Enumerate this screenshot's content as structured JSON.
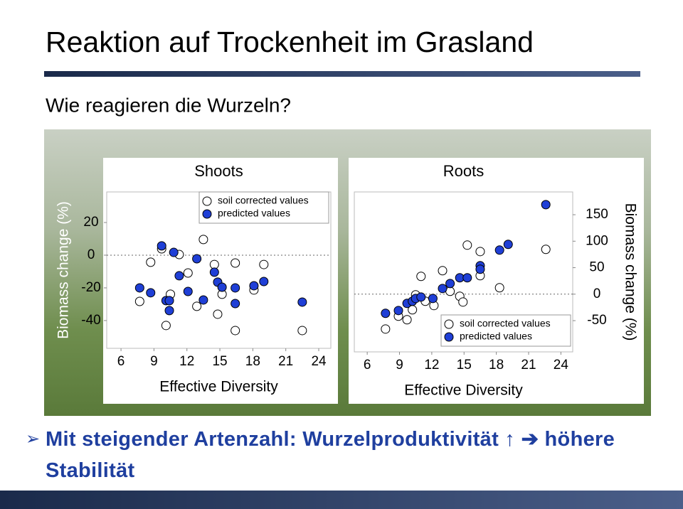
{
  "title": "Reaktion auf Trockenheit im Grasland",
  "subtitle": "Wie reagieren die Wurzeln?",
  "bullet": [
    "Mit steigender Artenzahl: Wurzelproduktivität ↑",
    "höhere Stabilität"
  ],
  "chart_data": [
    {
      "type": "scatter",
      "title": "Shoots",
      "xlabel": "Effective Diversity",
      "ylabel": "Biomass change (%)",
      "xlim": [
        4.7,
        25.1
      ],
      "xticks": [
        6,
        9,
        12,
        15,
        18,
        21,
        24
      ],
      "ylim": [
        -57,
        38.7
      ],
      "yticks": [
        20,
        0,
        -20,
        -40
      ],
      "y_axis_side": "left",
      "reference_line": 0,
      "legend": "upper right",
      "series": [
        {
          "name": "soil corrected values",
          "color": "#ffffff",
          "x": [
            7.7,
            8.7,
            9.7,
            10.1,
            10.5,
            11.3,
            12.1,
            12.9,
            13.5,
            14.5,
            14.8,
            15.2,
            16.4,
            16.4,
            18.1,
            19.0,
            22.5
          ],
          "values": [
            -28.3,
            -4.3,
            3.9,
            -43,
            -23.9,
            0.4,
            -10.9,
            -31.3,
            9.6,
            -5.7,
            -36.1,
            -23.9,
            -4.8,
            -46.1,
            -21.3,
            -5.7,
            -46.1
          ]
        },
        {
          "name": "predicted values",
          "color": "#1f3fd6",
          "x": [
            7.7,
            8.7,
            9.7,
            10.1,
            10.4,
            10.4,
            10.8,
            11.3,
            12.1,
            12.9,
            13.5,
            14.5,
            14.8,
            15.2,
            16.4,
            16.4,
            18.1,
            19.0,
            22.5
          ],
          "values": [
            -20,
            -23,
            5.7,
            -27.8,
            -33.9,
            -27.8,
            1.7,
            -12.6,
            -22.2,
            -2.2,
            -27.4,
            -10.4,
            -16.5,
            -19.6,
            -20,
            -29.6,
            -18.7,
            -16.1,
            -28.7
          ]
        }
      ]
    },
    {
      "type": "scatter",
      "title": "Roots",
      "xlabel": "Effective Diversity",
      "ylabel": "Biomass change (%)",
      "xlim": [
        4.8,
        25.1
      ],
      "xticks": [
        6,
        9,
        12,
        15,
        18,
        21,
        24
      ],
      "ylim": [
        -109,
        193
      ],
      "yticks": [
        150,
        100,
        50,
        0,
        -50
      ],
      "y_axis_side": "right",
      "reference_line": 0,
      "legend": "lower right",
      "series": [
        {
          "name": "soil corrected values",
          "color": "#ffffff",
          "x": [
            7.7,
            8.9,
            9.7,
            10.2,
            10.5,
            11.0,
            11.4,
            12.2,
            13.0,
            13.7,
            14.6,
            14.9,
            15.3,
            16.5,
            16.5,
            18.3,
            22.6
          ],
          "values": [
            -65.8,
            -41.6,
            -48.3,
            -29.5,
            -1.3,
            33.6,
            -13.4,
            -21.5,
            44.3,
            5.4,
            -4,
            -14.8,
            92.6,
            80.5,
            34.9,
            12.1,
            84.6
          ]
        },
        {
          "name": "predicted values",
          "color": "#1f3fd6",
          "x": [
            7.7,
            8.9,
            9.7,
            10.2,
            10.5,
            11.0,
            12.1,
            13.0,
            13.7,
            14.6,
            15.3,
            16.5,
            16.5,
            18.3,
            19.1,
            22.6
          ],
          "values": [
            -36.2,
            -30.9,
            -17.4,
            -13.4,
            -8.1,
            -5.4,
            -8.1,
            10.7,
            20.1,
            30.9,
            30.9,
            53.7,
            47,
            83.2,
            94,
            169
          ]
        }
      ]
    }
  ]
}
